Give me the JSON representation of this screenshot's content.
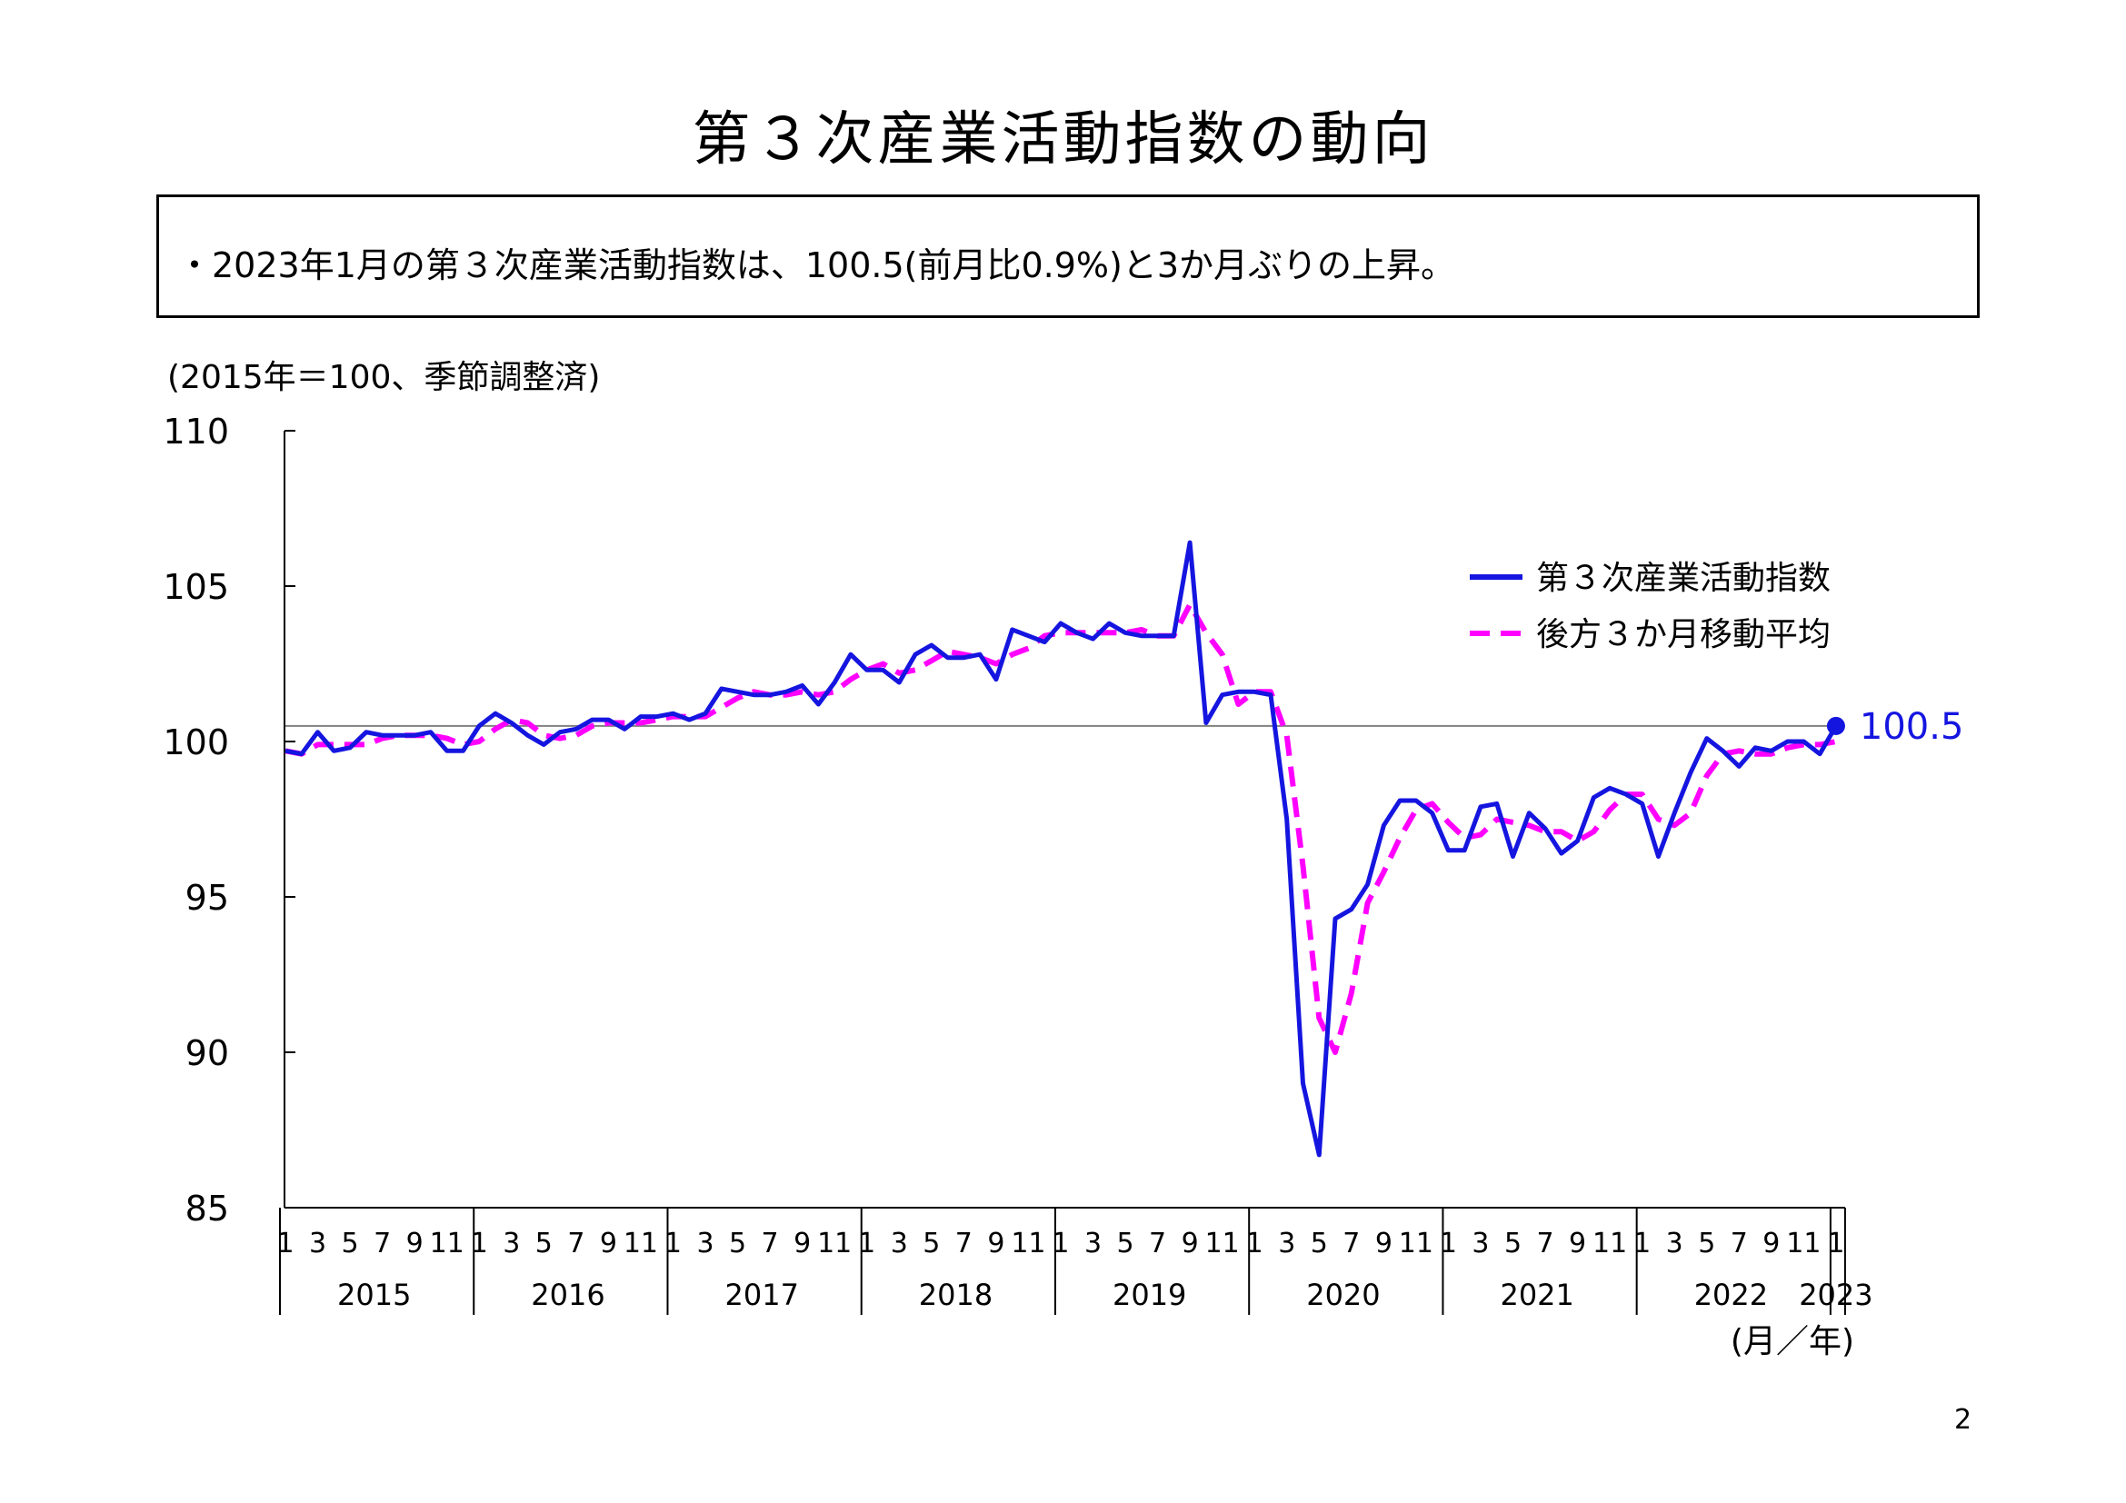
{
  "page": {
    "title": "第３次産業活動指数の動向",
    "summary": "・2023年1月の第３次産業活動指数は、100.5(前月比0.9%)と3か月ぶりの上昇。",
    "unit_note": "(2015年＝100、季節調整済)",
    "page_number": "2"
  },
  "chart_data": {
    "type": "line",
    "x_label": "(月／年)",
    "ylim": [
      85,
      110
    ],
    "y_ticks": [
      "85",
      "90",
      "95",
      "100",
      "105",
      "110"
    ],
    "month_tick_labels": [
      "1",
      "3",
      "5",
      "7",
      "9",
      "11"
    ],
    "years": [
      "2015",
      "2016",
      "2017",
      "2018",
      "2019",
      "2020",
      "2021",
      "2022",
      "2023"
    ],
    "reference_line": 100.5,
    "last_point_label": "100.5",
    "grid": false,
    "legend_position": "top-right",
    "series": [
      {
        "name": "第３次産業活動指数",
        "color": "#1515e0",
        "style": "solid",
        "values": [
          99.7,
          99.6,
          100.3,
          99.7,
          99.8,
          100.3,
          100.2,
          100.2,
          100.2,
          100.3,
          99.7,
          99.7,
          100.5,
          100.9,
          100.6,
          100.2,
          99.9,
          100.3,
          100.4,
          100.7,
          100.7,
          100.4,
          100.8,
          100.8,
          100.9,
          100.7,
          100.9,
          101.7,
          101.6,
          101.5,
          101.5,
          101.6,
          101.8,
          101.2,
          101.9,
          102.8,
          102.3,
          102.3,
          101.9,
          102.8,
          103.1,
          102.7,
          102.7,
          102.8,
          102.0,
          103.6,
          103.4,
          103.2,
          103.8,
          103.5,
          103.3,
          103.8,
          103.5,
          103.4,
          103.4,
          103.4,
          106.4,
          100.6,
          101.5,
          101.6,
          101.6,
          101.5,
          97.5,
          89.0,
          86.7,
          94.3,
          94.6,
          95.4,
          97.3,
          98.1,
          98.1,
          97.7,
          96.5,
          96.5,
          97.9,
          98.0,
          96.3,
          97.7,
          97.2,
          96.4,
          96.8,
          98.2,
          98.5,
          98.3,
          98.0,
          96.3,
          97.7,
          99.0,
          100.1,
          99.7,
          99.2,
          99.8,
          99.7,
          100.0,
          100.0,
          99.6,
          100.5
        ]
      },
      {
        "name": "後方３か月移動平均",
        "color": "#ff00ff",
        "style": "dashed",
        "values": [
          99.7,
          99.6,
          99.9,
          99.9,
          99.9,
          99.9,
          100.1,
          100.2,
          100.2,
          100.2,
          100.1,
          99.9,
          100.0,
          100.4,
          100.7,
          100.6,
          100.2,
          100.1,
          100.2,
          100.5,
          100.6,
          100.6,
          100.6,
          100.7,
          100.8,
          100.8,
          100.8,
          101.1,
          101.4,
          101.6,
          101.5,
          101.5,
          101.6,
          101.5,
          101.6,
          102.0,
          102.3,
          102.5,
          102.2,
          102.3,
          102.6,
          102.9,
          102.8,
          102.7,
          102.5,
          102.8,
          103.0,
          103.4,
          103.5,
          103.5,
          103.5,
          103.5,
          103.5,
          103.6,
          103.4,
          103.4,
          104.4,
          103.5,
          102.8,
          101.2,
          101.6,
          101.6,
          100.2,
          96.0,
          91.1,
          90.0,
          91.9,
          94.8,
          95.8,
          96.9,
          97.8,
          98.0,
          97.4,
          96.9,
          97.0,
          97.5,
          97.4,
          97.3,
          97.1,
          97.1,
          96.8,
          97.1,
          97.8,
          98.3,
          98.3,
          97.5,
          97.3,
          97.7,
          98.9,
          99.6,
          99.7,
          99.6,
          99.6,
          99.8,
          99.9,
          99.9,
          100.0
        ]
      }
    ]
  }
}
